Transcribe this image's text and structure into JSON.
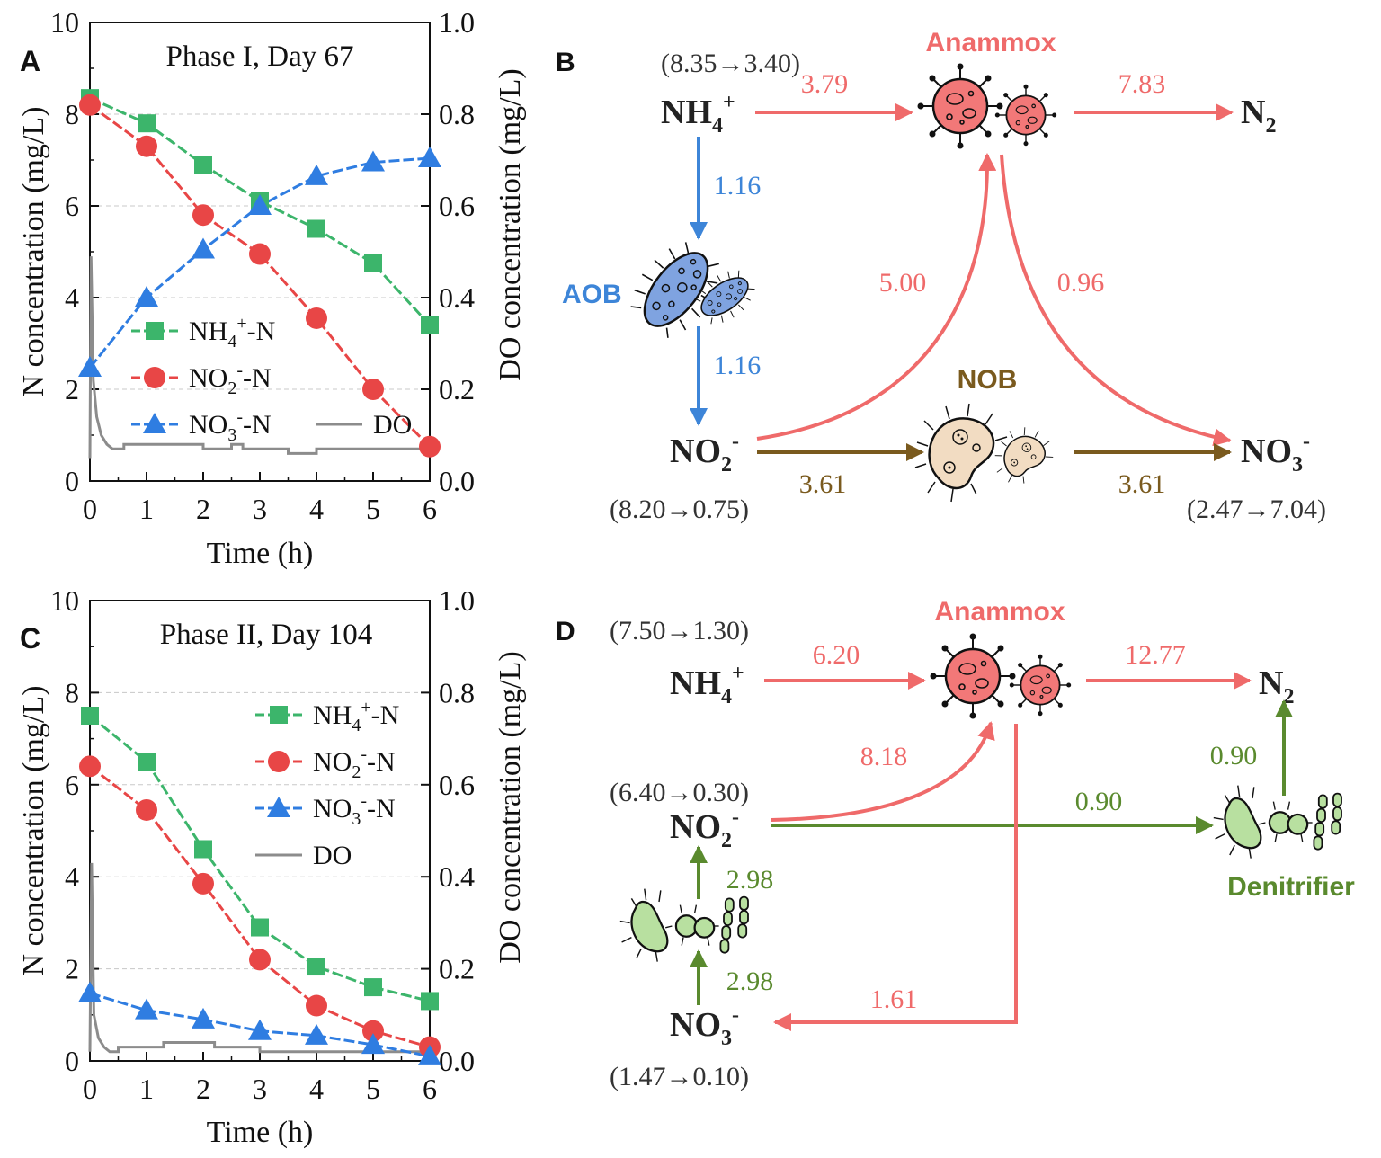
{
  "colors": {
    "nh4": "#3cb56b",
    "no2": "#e84646",
    "no3": "#2f7de1",
    "do": "#8c8c8c",
    "anammox": "#ef6a6a",
    "aob": "#3d85d8",
    "nob": "#7a5a1e",
    "denit": "#5a8a2e",
    "text": "#222222",
    "grid": "#c8c8c8"
  },
  "chart_data": [
    {
      "panel": "A",
      "type": "line",
      "title": "Phase I, Day 67",
      "xlabel": "Time (h)",
      "ylabel": "N concentration (mg/L)",
      "y2label": "DO concentration (mg/L)",
      "xlim": [
        0,
        6
      ],
      "ylim": [
        0,
        10
      ],
      "y2lim": [
        0.0,
        1.0
      ],
      "xticks": [
        "0",
        "1",
        "2",
        "3",
        "4",
        "5",
        "6"
      ],
      "yticks": [
        "0",
        "2",
        "4",
        "6",
        "8",
        "10"
      ],
      "y2ticks": [
        "0.0",
        "0.2",
        "0.4",
        "0.6",
        "0.8",
        "1.0"
      ],
      "x": [
        0,
        1,
        2,
        3,
        4,
        5,
        6
      ],
      "series": [
        {
          "key": "nh4",
          "name": "NH4+-N",
          "marker": "square",
          "values": [
            8.35,
            7.8,
            6.9,
            6.1,
            5.5,
            4.75,
            3.4
          ]
        },
        {
          "key": "no2",
          "name": "NO2--N",
          "marker": "circle",
          "values": [
            8.2,
            7.3,
            5.8,
            4.95,
            3.55,
            2.0,
            0.75
          ]
        },
        {
          "key": "no3",
          "name": "NO3--N",
          "marker": "triangle",
          "values": [
            2.47,
            4.0,
            5.05,
            6.0,
            6.65,
            6.95,
            7.04
          ]
        }
      ],
      "do_series": {
        "name": "DO",
        "points": [
          [
            0.0,
            0.05
          ],
          [
            0.02,
            0.49
          ],
          [
            0.06,
            0.22
          ],
          [
            0.12,
            0.14
          ],
          [
            0.2,
            0.1
          ],
          [
            0.3,
            0.08
          ],
          [
            0.4,
            0.07
          ],
          [
            0.6,
            0.07
          ],
          [
            0.6,
            0.08
          ],
          [
            2.0,
            0.08
          ],
          [
            2.0,
            0.07
          ],
          [
            2.5,
            0.07
          ],
          [
            2.5,
            0.08
          ],
          [
            2.7,
            0.08
          ],
          [
            2.7,
            0.07
          ],
          [
            3.5,
            0.07
          ],
          [
            3.5,
            0.06
          ],
          [
            4.0,
            0.06
          ],
          [
            4.0,
            0.07
          ],
          [
            6.0,
            0.07
          ]
        ]
      },
      "legend": {
        "position": "lower-left",
        "rows": [
          [
            {
              "key": "nh4",
              "main": "NH",
              "sub": "4",
              "sup": "+",
              "tail": "-N"
            }
          ],
          [
            {
              "key": "no2",
              "main": "NO",
              "sub": "2",
              "sup": "-",
              "tail": "-N"
            }
          ],
          [
            {
              "key": "no3",
              "main": "NO",
              "sub": "3",
              "sup": "-",
              "tail": "-N"
            },
            {
              "key": "do",
              "main": "DO"
            }
          ]
        ]
      }
    },
    {
      "panel": "C",
      "type": "line",
      "title": "Phase II, Day 104",
      "xlabel": "Time (h)",
      "ylabel": "N concentration (mg/L)",
      "y2label": "DO concentration (mg/L)",
      "xlim": [
        0,
        6
      ],
      "ylim": [
        0,
        10
      ],
      "y2lim": [
        0.0,
        1.0
      ],
      "xticks": [
        "0",
        "1",
        "2",
        "3",
        "4",
        "5",
        "6"
      ],
      "yticks": [
        "0",
        "2",
        "4",
        "6",
        "8",
        "10"
      ],
      "y2ticks": [
        "0.0",
        "0.2",
        "0.4",
        "0.6",
        "0.8",
        "1.0"
      ],
      "x": [
        0,
        1,
        2,
        3,
        4,
        5,
        6
      ],
      "series": [
        {
          "key": "nh4",
          "name": "NH4+-N",
          "marker": "square",
          "values": [
            7.5,
            6.5,
            4.6,
            2.9,
            2.05,
            1.6,
            1.3
          ]
        },
        {
          "key": "no2",
          "name": "NO2--N",
          "marker": "circle",
          "values": [
            6.4,
            5.45,
            3.85,
            2.2,
            1.2,
            0.65,
            0.3
          ]
        },
        {
          "key": "no3",
          "name": "NO3--N",
          "marker": "triangle",
          "values": [
            1.47,
            1.1,
            0.9,
            0.65,
            0.55,
            0.35,
            0.1
          ]
        }
      ],
      "do_series": {
        "name": "DO",
        "points": [
          [
            0.0,
            0.02
          ],
          [
            0.03,
            0.43
          ],
          [
            0.07,
            0.1
          ],
          [
            0.15,
            0.05
          ],
          [
            0.25,
            0.03
          ],
          [
            0.35,
            0.02
          ],
          [
            0.5,
            0.02
          ],
          [
            0.5,
            0.03
          ],
          [
            1.3,
            0.03
          ],
          [
            1.3,
            0.04
          ],
          [
            2.2,
            0.04
          ],
          [
            2.2,
            0.03
          ],
          [
            3.0,
            0.03
          ],
          [
            3.0,
            0.02
          ],
          [
            6.0,
            0.02
          ]
        ]
      },
      "legend": {
        "position": "upper-right",
        "rows": [
          [
            {
              "key": "nh4",
              "main": "NH",
              "sub": "4",
              "sup": "+",
              "tail": "-N"
            }
          ],
          [
            {
              "key": "no2",
              "main": "NO",
              "sub": "2",
              "sup": "-",
              "tail": "-N"
            }
          ],
          [
            {
              "key": "no3",
              "main": "NO",
              "sub": "3",
              "sup": "-",
              "tail": "-N"
            }
          ],
          [
            {
              "key": "do",
              "main": "DO"
            }
          ]
        ]
      }
    }
  ],
  "diagrams": {
    "B": {
      "panel_label": "B",
      "nh4": {
        "main": "NH",
        "sub": "4",
        "sup": "+",
        "range": "(8.35→3.40)"
      },
      "no2": {
        "main": "NO",
        "sub": "2",
        "sup": "-",
        "range": "(8.20→0.75)"
      },
      "no3": {
        "main": "NO",
        "sub": "3",
        "sup": "-",
        "range": "(2.47→7.04)"
      },
      "n2": {
        "main": "N",
        "sub": "2"
      },
      "anammox_label": "Anammox",
      "aob_label": "AOB",
      "nob_label": "NOB",
      "flows": {
        "nh4_to_anammox": "3.79",
        "anammox_to_n2": "7.83",
        "nh4_to_aob": "1.16",
        "aob_to_no2": "1.16",
        "no2_to_anammox": "5.00",
        "anammox_to_no3": "0.96",
        "no2_to_nob": "3.61",
        "nob_to_no3": "3.61"
      }
    },
    "D": {
      "panel_label": "D",
      "nh4": {
        "main": "NH",
        "sub": "4",
        "sup": "+",
        "range": "(7.50→1.30)"
      },
      "no2": {
        "main": "NO",
        "sub": "2",
        "sup": "-",
        "range": "(6.40→0.30)"
      },
      "no3": {
        "main": "NO",
        "sub": "3",
        "sup": "-",
        "range": "(1.47→0.10)"
      },
      "n2": {
        "main": "N",
        "sub": "2"
      },
      "anammox_label": "Anammox",
      "denit_label": "Denitrifier",
      "flows": {
        "nh4_to_anammox": "6.20",
        "anammox_to_n2": "12.77",
        "no2_to_anammox": "8.18",
        "no2_to_denit": "0.90",
        "denit_to_n2": "0.90",
        "no3_to_denit": "2.98",
        "denit_to_no2": "2.98",
        "anammox_to_no3": "1.61"
      }
    }
  }
}
